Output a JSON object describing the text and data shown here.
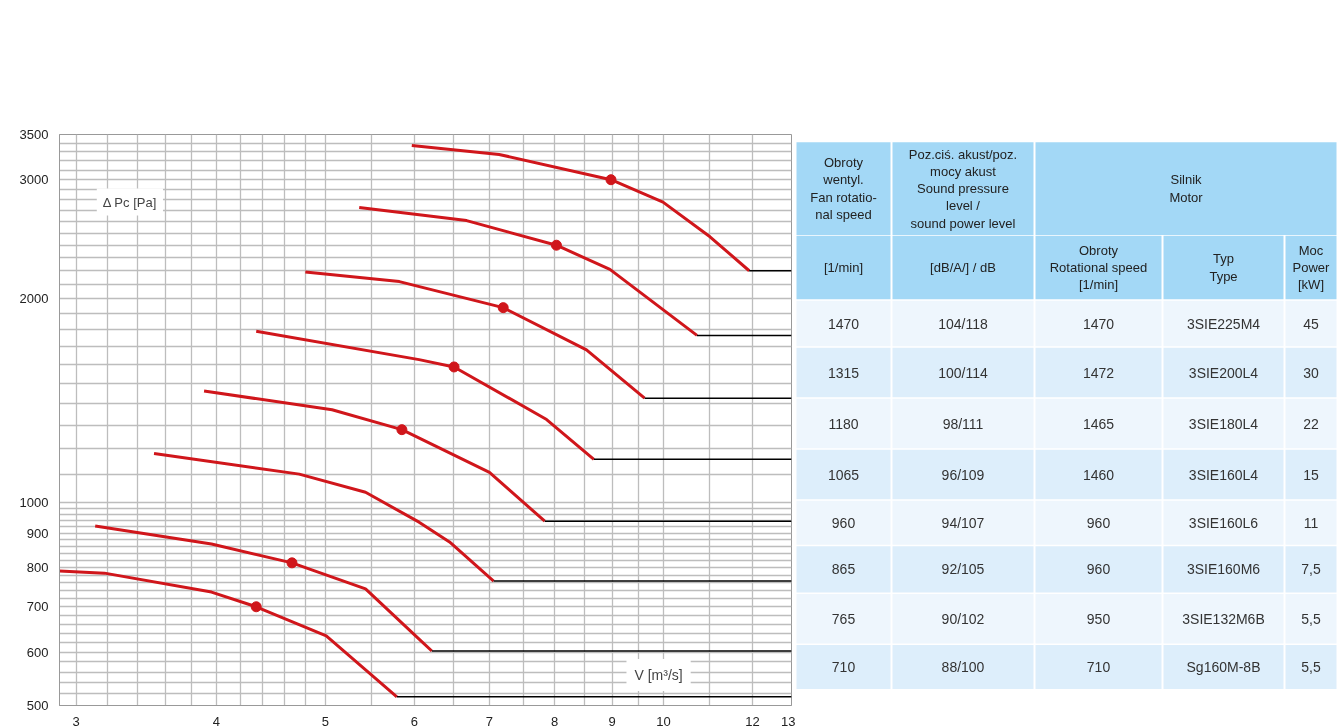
{
  "chart_data": [
    {
      "type": "line",
      "xlabel": "V [m³/s]",
      "ylabel": "Δ Pc [Pa]",
      "log": "xy",
      "grid": true,
      "xlim": [
        2.9,
        13
      ],
      "ylim": [
        500,
        3500
      ],
      "xticks": [
        3,
        {
          "value": 3.2,
          "label": null
        },
        {
          "value": 3.4,
          "label": null
        },
        {
          "value": 3.6,
          "label": null
        },
        {
          "value": 3.8,
          "label": null
        },
        4,
        {
          "value": 4.2,
          "label": null
        },
        {
          "value": 4.4,
          "label": null
        },
        {
          "value": 4.6,
          "label": null
        },
        {
          "value": 4.8,
          "label": null
        },
        5,
        {
          "value": 5.5,
          "label": null
        },
        6,
        {
          "value": 6.5,
          "label": null
        },
        7,
        {
          "value": 7.5,
          "label": null
        },
        8,
        {
          "value": 8.5,
          "label": null
        },
        9,
        {
          "value": 9.5,
          "label": null
        },
        10,
        {
          "value": 11,
          "label": null
        },
        12,
        13
      ],
      "yticks": [
        500,
        {
          "value": 520,
          "label": null
        },
        {
          "value": 540,
          "label": null
        },
        {
          "value": 560,
          "label": null
        },
        {
          "value": 580,
          "label": null
        },
        600,
        {
          "value": 620,
          "label": null
        },
        {
          "value": 640,
          "label": null
        },
        {
          "value": 660,
          "label": null
        },
        {
          "value": 680,
          "label": null
        },
        700,
        {
          "value": 720,
          "label": null
        },
        {
          "value": 740,
          "label": null
        },
        {
          "value": 760,
          "label": null
        },
        {
          "value": 780,
          "label": null
        },
        800,
        {
          "value": 820,
          "label": null
        },
        {
          "value": 840,
          "label": null
        },
        {
          "value": 860,
          "label": null
        },
        {
          "value": 880,
          "label": null
        },
        900,
        {
          "value": 920,
          "label": null
        },
        {
          "value": 940,
          "label": null
        },
        {
          "value": 960,
          "label": null
        },
        {
          "value": 980,
          "label": null
        },
        1000,
        {
          "value": 1100,
          "label": null
        },
        {
          "value": 1200,
          "label": null
        },
        {
          "value": 1300,
          "label": null
        },
        {
          "value": 1400,
          "label": null
        },
        {
          "value": 1500,
          "label": null
        },
        {
          "value": 1600,
          "label": null
        },
        {
          "value": 1700,
          "label": null
        },
        {
          "value": 1800,
          "label": null
        },
        {
          "value": 1900,
          "label": null
        },
        2000,
        {
          "value": 2100,
          "label": null
        },
        {
          "value": 2200,
          "label": null
        },
        {
          "value": 2300,
          "label": null
        },
        {
          "value": 2400,
          "label": null
        },
        {
          "value": 2500,
          "label": null
        },
        {
          "value": 2600,
          "label": null
        },
        {
          "value": 2700,
          "label": null
        },
        {
          "value": 2800,
          "label": null
        },
        {
          "value": 2900,
          "label": null
        },
        3000,
        {
          "value": 3100,
          "label": null
        },
        {
          "value": 3200,
          "label": null
        },
        {
          "value": 3300,
          "label": null
        },
        {
          "value": 3400,
          "label": null
        },
        3500
      ],
      "series": [
        {
          "color": "#d0161b",
          "x": [
            5.97,
            7.14,
            8.98,
            9.99,
            11.0,
            11.92
          ],
          "values": [
            3370,
            3270,
            3000,
            2780,
            2470,
            2200
          ]
        },
        {
          "color": "#d0161b",
          "x": [
            5.36,
            6.68,
            8.03,
            8.96,
            10.71
          ],
          "values": [
            2730,
            2610,
            2400,
            2210,
            1765
          ]
        },
        {
          "color": "#d0161b",
          "x": [
            4.8,
            5.82,
            7.2,
            8.54,
            9.62
          ],
          "values": [
            2190,
            2120,
            1940,
            1680,
            1425
          ]
        },
        {
          "color": "#d0161b",
          "x": [
            4.34,
            6.06,
            6.51,
            7.87,
            8.67
          ],
          "values": [
            1790,
            1625,
            1585,
            1325,
            1157
          ]
        },
        {
          "color": "#d0161b",
          "x": [
            3.9,
            5.07,
            5.85,
            7.0,
            7.84
          ],
          "values": [
            1460,
            1370,
            1280,
            1107,
            937
          ]
        },
        {
          "color": "#d0161b",
          "x": [
            3.52,
            4.74,
            5.43,
            6.06,
            6.45,
            7.06
          ],
          "values": [
            1180,
            1100,
            1034,
            934,
            873,
            764
          ]
        },
        {
          "color": "#d0161b",
          "x": [
            3.12,
            3.96,
            4.67,
            5.43,
            6.06,
            6.22
          ],
          "values": [
            922,
            867,
            813,
            744,
            627,
            602
          ]
        },
        {
          "color": "#d0161b",
          "x": [
            2.9,
            3.18,
            3.96,
            4.34,
            5.01,
            5.79
          ],
          "values": [
            791,
            785,
            736,
            700,
            634,
            515
          ]
        },
        {
          "color": "#000000",
          "x": [
            11.92,
            13
          ],
          "values": [
            2200,
            2200
          ]
        },
        {
          "color": "#000000",
          "x": [
            10.71,
            13
          ],
          "values": [
            1765,
            1765
          ]
        },
        {
          "color": "#000000",
          "x": [
            9.62,
            13
          ],
          "values": [
            1425,
            1425
          ]
        },
        {
          "color": "#000000",
          "x": [
            8.67,
            13
          ],
          "values": [
            1157,
            1157
          ]
        },
        {
          "color": "#000000",
          "x": [
            7.84,
            13
          ],
          "values": [
            937,
            937
          ]
        },
        {
          "color": "#000000",
          "x": [
            7.06,
            13
          ],
          "values": [
            764,
            764
          ]
        },
        {
          "color": "#000000",
          "x": [
            6.22,
            13
          ],
          "values": [
            602,
            602
          ]
        },
        {
          "color": "#000000",
          "x": [
            5.79,
            13
          ],
          "values": [
            515,
            515
          ]
        },
        {
          "type": "scatter",
          "color": "#d0161b",
          "x": [
            8.98,
            8.03,
            7.2,
            6.51,
            5.85,
            4.67,
            4.34
          ],
          "values": [
            3000,
            2400,
            1940,
            1585,
            1280,
            813,
            700
          ]
        }
      ]
    },
    {
      "type": "other",
      "annotations": [
        "Obroty\nwentyl.\nFan rotatio-\nnal speed",
        "Poz.ciś. akust/poz.\nmocy akust\nSound pressure\nlevel /\nsound power level",
        "Silnik\nMotor",
        "[1/min]",
        "[dB/A/] / dB",
        "Obroty\nRotational speed\n[1/min]",
        "Typ\nType",
        "Moc\nPower\n[kW]",
        "1470",
        "104/118",
        "1470",
        "3SIE225M4",
        "45",
        "1315",
        "100/114",
        "1472",
        "3SIE200L4",
        "30",
        "1180",
        "98/111",
        "1465",
        "3SIE180L4",
        "22",
        "1065",
        "96/109",
        "1460",
        "3SIE160L4",
        "15",
        "960",
        "94/107",
        "960",
        "3SIE160L6",
        "11",
        "865",
        "92/105",
        "960",
        "3SIE160M6",
        "7,5",
        "765",
        "90/102",
        "950",
        "3SIE132M6B",
        "5,5",
        "710",
        "88/100",
        "710",
        "Sg160M-8B",
        "5,5"
      ]
    }
  ]
}
